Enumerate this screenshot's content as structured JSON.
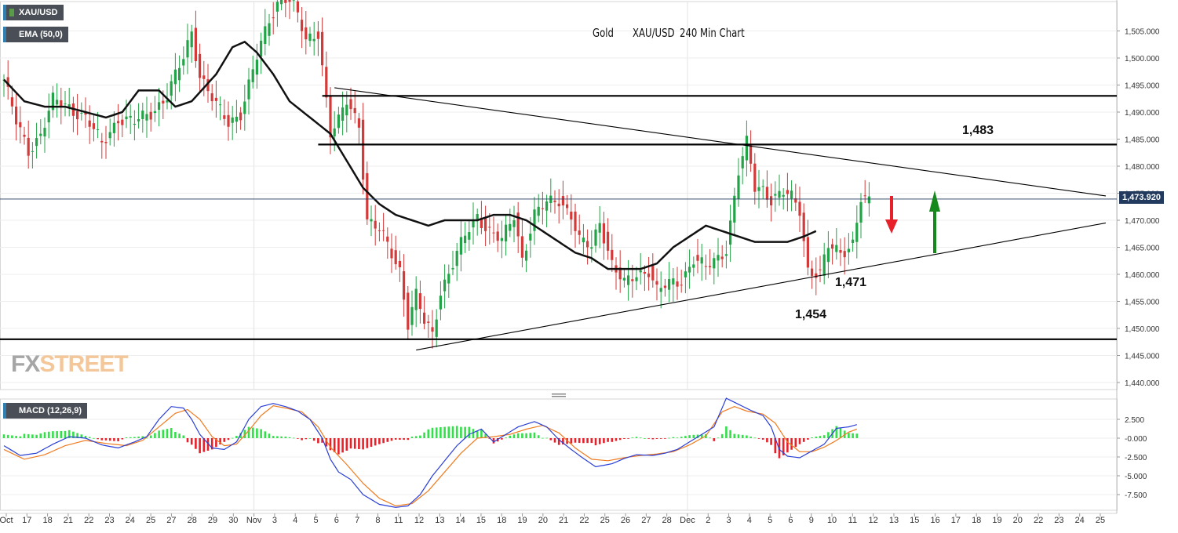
{
  "symbol_badge": "XAU/USD",
  "ema_badge": "EMA (50,0)",
  "macd_badge": "MACD (12,26,9)",
  "chart_title": {
    "part1": "Gold",
    "part2": "XAU/USD",
    "part3": "240 Min Chart"
  },
  "watermark": {
    "fx": "FX",
    "street": "STREET"
  },
  "level_labels": {
    "resistance": "1,483",
    "support_trend": "1,471",
    "support_low": "1,454"
  },
  "last_price_label": "1,473.920",
  "colors": {
    "bull": "#23a347",
    "bear": "#d33a3a",
    "ema": "#111111",
    "macd_line": "#2a3fd6",
    "signal_line": "#f07b1f",
    "hist_pos": "#33e04a",
    "hist_neg": "#e8202a",
    "arrow_down": "#e8202a",
    "arrow_up": "#15891c"
  },
  "chart_data": [
    {
      "type": "candlestick",
      "title": "Gold     XAU/USD     240 Min Chart",
      "symbol": "XAU/USD",
      "y_axis_ticks": [
        "1,440.000",
        "1,445.000",
        "1,450.000",
        "1,455.000",
        "1,460.000",
        "1,465.000",
        "1,470.000",
        "1,475.000",
        "1,480.000",
        "1,485.000",
        "1,490.000",
        "1,495.000",
        "1,500.000",
        "1,505.000"
      ],
      "ylim": [
        1438,
        1510
      ],
      "x_axis_ticks": [
        "Oct",
        "17",
        "18",
        "21",
        "22",
        "23",
        "24",
        "25",
        "27",
        "28",
        "29",
        "30",
        "Nov",
        "3",
        "4",
        "5",
        "6",
        "7",
        "8",
        "11",
        "12",
        "13",
        "14",
        "15",
        "18",
        "19",
        "20",
        "21",
        "22",
        "25",
        "26",
        "27",
        "28",
        "Dec",
        "2",
        "3",
        "4",
        "5",
        "6",
        "9",
        "10",
        "11",
        "12",
        "13",
        "15",
        "16",
        "17",
        "18",
        "19",
        "20",
        "22",
        "23",
        "24",
        "25"
      ],
      "close_anchors": [
        [
          0,
          1496
        ],
        [
          3,
          1488
        ],
        [
          6,
          1483
        ],
        [
          9,
          1486
        ],
        [
          12,
          1492
        ],
        [
          16,
          1491
        ],
        [
          20,
          1489
        ],
        [
          24,
          1484
        ],
        [
          28,
          1489
        ],
        [
          32,
          1488
        ],
        [
          36,
          1490
        ],
        [
          40,
          1493
        ],
        [
          44,
          1500
        ],
        [
          46,
          1505
        ],
        [
          48,
          1497
        ],
        [
          52,
          1491
        ],
        [
          55,
          1488
        ],
        [
          58,
          1490
        ],
        [
          62,
          1500
        ],
        [
          65,
          1507
        ],
        [
          68,
          1512
        ],
        [
          71,
          1510
        ],
        [
          74,
          1503
        ],
        [
          77,
          1505
        ],
        [
          80,
          1486
        ],
        [
          82,
          1488
        ],
        [
          84,
          1492
        ],
        [
          87,
          1488
        ],
        [
          89,
          1470
        ],
        [
          92,
          1468
        ],
        [
          95,
          1464
        ],
        [
          97,
          1461
        ],
        [
          99,
          1451
        ],
        [
          101,
          1456
        ],
        [
          103,
          1451
        ],
        [
          105,
          1449
        ],
        [
          107,
          1457
        ],
        [
          110,
          1462
        ],
        [
          113,
          1467
        ],
        [
          116,
          1471
        ],
        [
          119,
          1468
        ],
        [
          122,
          1466
        ],
        [
          125,
          1471
        ],
        [
          127,
          1463
        ],
        [
          130,
          1471
        ],
        [
          133,
          1473
        ],
        [
          136,
          1474
        ],
        [
          139,
          1471
        ],
        [
          141,
          1466
        ],
        [
          144,
          1465
        ],
        [
          146,
          1470
        ],
        [
          149,
          1462
        ],
        [
          152,
          1458
        ],
        [
          155,
          1460
        ],
        [
          158,
          1461
        ],
        [
          160,
          1457
        ],
        [
          163,
          1458
        ],
        [
          166,
          1459
        ],
        [
          169,
          1463
        ],
        [
          172,
          1461
        ],
        [
          175,
          1463
        ],
        [
          177,
          1465
        ],
        [
          180,
          1479
        ],
        [
          182,
          1484
        ],
        [
          184,
          1476
        ],
        [
          186,
          1476
        ],
        [
          188,
          1474
        ],
        [
          191,
          1475
        ],
        [
          193,
          1474
        ],
        [
          195,
          1472
        ],
        [
          197,
          1461
        ],
        [
          200,
          1460
        ],
        [
          202,
          1465
        ],
        [
          205,
          1464
        ],
        [
          208,
          1466
        ],
        [
          210,
          1474
        ],
        [
          212,
          1473
        ]
      ],
      "ema": {
        "name": "EMA (50,0)",
        "anchors": [
          [
            0,
            1496
          ],
          [
            5,
            1492
          ],
          [
            10,
            1491
          ],
          [
            15,
            1491
          ],
          [
            20,
            1490
          ],
          [
            25,
            1489
          ],
          [
            29,
            1490
          ],
          [
            33,
            1494
          ],
          [
            38,
            1494
          ],
          [
            42,
            1491
          ],
          [
            46,
            1492
          ],
          [
            52,
            1497
          ],
          [
            56,
            1502
          ],
          [
            59,
            1503
          ],
          [
            62,
            1501
          ],
          [
            66,
            1497
          ],
          [
            70,
            1492
          ],
          [
            75,
            1489
          ],
          [
            80,
            1486
          ],
          [
            84,
            1481
          ],
          [
            88,
            1476
          ],
          [
            92,
            1473
          ],
          [
            96,
            1471
          ],
          [
            100,
            1470
          ],
          [
            104,
            1469
          ],
          [
            108,
            1470
          ],
          [
            112,
            1470
          ],
          [
            116,
            1470
          ],
          [
            120,
            1471
          ],
          [
            124,
            1471
          ],
          [
            128,
            1470
          ],
          [
            132,
            1468
          ],
          [
            136,
            1466
          ],
          [
            140,
            1464
          ],
          [
            144,
            1463
          ],
          [
            148,
            1461
          ],
          [
            152,
            1461
          ],
          [
            156,
            1461
          ],
          [
            160,
            1462
          ],
          [
            164,
            1465
          ],
          [
            168,
            1467
          ],
          [
            172,
            1469
          ],
          [
            176,
            1468
          ],
          [
            180,
            1467
          ],
          [
            184,
            1466
          ],
          [
            188,
            1466
          ],
          [
            192,
            1466
          ],
          [
            196,
            1467
          ],
          [
            199,
            1468
          ]
        ]
      },
      "horizontal_levels": [
        {
          "value": 1493,
          "from_x": 78,
          "to_x": 270
        },
        {
          "value": 1484,
          "from_x": 77,
          "to_x": 270
        },
        {
          "value": 1448,
          "from_x": 0,
          "to_x": 270
        }
      ],
      "trendlines": [
        {
          "from": [
            81,
            1494.5
          ],
          "to": [
            270,
            1474.5
          ]
        },
        {
          "from": [
            101,
            1446
          ],
          "to": [
            270,
            1469.5
          ]
        }
      ],
      "last_price": 1473.92,
      "annotations": [
        {
          "text": "1,483",
          "value": 1483
        },
        {
          "text": "1,471",
          "value": 1471
        },
        {
          "text": "1,454",
          "value": 1454
        },
        {
          "type": "arrow-down",
          "color": "red"
        },
        {
          "type": "arrow-up",
          "color": "green"
        }
      ]
    },
    {
      "type": "macd",
      "title": "MACD (12,26,9)",
      "y_axis_ticks": [
        "-7.500",
        "-5.000",
        "-2.500",
        "-0.000",
        "2.500"
      ],
      "ylim": [
        -9.5,
        5.5
      ],
      "macd_anchors": [
        [
          0,
          -1
        ],
        [
          4,
          -2.3
        ],
        [
          8,
          -2
        ],
        [
          12,
          -0.8
        ],
        [
          16,
          0.2
        ],
        [
          20,
          0
        ],
        [
          24,
          -0.9
        ],
        [
          28,
          -1.3
        ],
        [
          32,
          -0.5
        ],
        [
          35,
          0.2
        ],
        [
          38,
          2.5
        ],
        [
          41,
          4.2
        ],
        [
          44,
          4.0
        ],
        [
          46,
          2.5
        ],
        [
          48,
          0.5
        ],
        [
          51,
          -1.3
        ],
        [
          54,
          -1.5
        ],
        [
          57,
          -0.5
        ],
        [
          60,
          2.5
        ],
        [
          63,
          4.2
        ],
        [
          66,
          4.6
        ],
        [
          69,
          4.2
        ],
        [
          72,
          3.6
        ],
        [
          75,
          2.5
        ],
        [
          78,
          0
        ],
        [
          80,
          -2.8
        ],
        [
          82,
          -4.5
        ],
        [
          85,
          -5.5
        ],
        [
          88,
          -7.5
        ],
        [
          92,
          -8.8
        ],
        [
          96,
          -9.2
        ],
        [
          99,
          -9.0
        ],
        [
          102,
          -7.5
        ],
        [
          105,
          -5
        ],
        [
          108,
          -3
        ],
        [
          111,
          -1
        ],
        [
          114,
          0.5
        ],
        [
          117,
          1.2
        ],
        [
          120,
          -0.5
        ],
        [
          123,
          0.5
        ],
        [
          126,
          1.5
        ],
        [
          130,
          2.2
        ],
        [
          133,
          1.5
        ],
        [
          136,
          -0.2
        ],
        [
          139,
          -1.5
        ],
        [
          142,
          -2.7
        ],
        [
          145,
          -3.8
        ],
        [
          149,
          -3.4
        ],
        [
          152,
          -2.7
        ],
        [
          155,
          -2.2
        ],
        [
          159,
          -2.3
        ],
        [
          162,
          -2.0
        ],
        [
          165,
          -1.5
        ],
        [
          168,
          -0.5
        ],
        [
          171,
          0.5
        ],
        [
          174,
          1.5
        ],
        [
          177,
          5.3
        ],
        [
          180,
          4.5
        ],
        [
          183,
          3.7
        ],
        [
          186,
          3.0
        ],
        [
          188,
          1.5
        ],
        [
          190,
          -1.5
        ],
        [
          192,
          -2.4
        ],
        [
          195,
          -2.6
        ],
        [
          198,
          -1.7
        ],
        [
          201,
          -0.8
        ],
        [
          204,
          1.3
        ],
        [
          207,
          1.5
        ],
        [
          209,
          1.8
        ]
      ],
      "signal_anchors": [
        [
          0,
          -1.5
        ],
        [
          5,
          -2.8
        ],
        [
          10,
          -2.2
        ],
        [
          15,
          -1
        ],
        [
          20,
          -0.3
        ],
        [
          25,
          -0.7
        ],
        [
          30,
          -1.0
        ],
        [
          34,
          -0.3
        ],
        [
          38,
          1.5
        ],
        [
          42,
          3.3
        ],
        [
          45,
          3.8
        ],
        [
          48,
          2.5
        ],
        [
          51,
          0.2
        ],
        [
          54,
          -1.0
        ],
        [
          57,
          -0.8
        ],
        [
          60,
          1.0
        ],
        [
          63,
          3.0
        ],
        [
          66,
          4.3
        ],
        [
          69,
          4.0
        ],
        [
          73,
          3.5
        ],
        [
          77,
          1.5
        ],
        [
          80,
          -1.2
        ],
        [
          84,
          -3.5
        ],
        [
          88,
          -6
        ],
        [
          92,
          -8
        ],
        [
          96,
          -9.0
        ],
        [
          100,
          -8.7
        ],
        [
          104,
          -7
        ],
        [
          108,
          -4.5
        ],
        [
          112,
          -2
        ],
        [
          116,
          0
        ],
        [
          120,
          0.2
        ],
        [
          124,
          0.5
        ],
        [
          128,
          1.2
        ],
        [
          132,
          1.7
        ],
        [
          136,
          0.7
        ],
        [
          140,
          -1.3
        ],
        [
          144,
          -2.8
        ],
        [
          148,
          -3.0
        ],
        [
          152,
          -2.6
        ],
        [
          156,
          -2.3
        ],
        [
          160,
          -2.1
        ],
        [
          164,
          -1.8
        ],
        [
          168,
          -0.9
        ],
        [
          172,
          0.3
        ],
        [
          176,
          3.5
        ],
        [
          179,
          4.2
        ],
        [
          182,
          3.6
        ],
        [
          186,
          3.2
        ],
        [
          189,
          2
        ],
        [
          192,
          -0.5
        ],
        [
          195,
          -1.8
        ],
        [
          198,
          -1.8
        ],
        [
          201,
          -1.2
        ],
        [
          204,
          -0.3
        ],
        [
          207,
          0.8
        ],
        [
          209,
          1.2
        ]
      ]
    }
  ]
}
